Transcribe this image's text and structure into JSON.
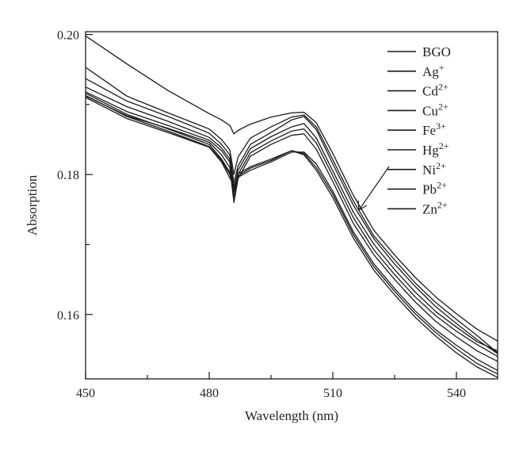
{
  "chart_data": {
    "type": "line",
    "title": "",
    "xlabel": "Wavelength (nm)",
    "ylabel": "Absorption",
    "xlim": [
      450,
      550
    ],
    "ylim": [
      0.1508,
      0.2004
    ],
    "x_ticks": [
      {
        "value": 450,
        "label": "450"
      },
      {
        "value": 480,
        "label": "480"
      },
      {
        "value": 510,
        "label": "510"
      },
      {
        "value": 540,
        "label": "540"
      }
    ],
    "y_ticks": [
      {
        "value": 0.16,
        "label": "0.16"
      },
      {
        "value": 0.18,
        "label": "0.18"
      },
      {
        "value": 0.2,
        "label": "0.20"
      }
    ],
    "grid": false,
    "legend_position": "top-right",
    "line_color": "#1a1a1a",
    "x": [
      450,
      460,
      470,
      480,
      483,
      485,
      486,
      487,
      490,
      495,
      500,
      503,
      506,
      510,
      515,
      520,
      525,
      530,
      535,
      540,
      545,
      550
    ],
    "series": [
      {
        "name": "BGO",
        "sup": "",
        "values": [
          0.1998,
          0.1958,
          0.192,
          0.1887,
          0.1878,
          0.187,
          0.1858,
          0.1863,
          0.1872,
          0.1882,
          0.1888,
          0.1889,
          0.1874,
          0.183,
          0.177,
          0.172,
          0.1685,
          0.1653,
          0.1625,
          0.1601,
          0.1579,
          0.1562
        ]
      },
      {
        "name": "Ag",
        "sup": "+",
        "values": [
          0.1953,
          0.1912,
          0.1888,
          0.1865,
          0.185,
          0.1835,
          0.18,
          0.1825,
          0.1852,
          0.1868,
          0.1882,
          0.1885,
          0.1868,
          0.1821,
          0.1762,
          0.1712,
          0.1678,
          0.1645,
          0.1617,
          0.1593,
          0.157,
          0.1545
        ]
      },
      {
        "name": "Cd",
        "sup": "2+",
        "values": [
          0.1937,
          0.1905,
          0.1883,
          0.1859,
          0.1843,
          0.1828,
          0.1788,
          0.1812,
          0.1843,
          0.186,
          0.1878,
          0.1883,
          0.1864,
          0.1815,
          0.1756,
          0.1708,
          0.1672,
          0.164,
          0.1611,
          0.1587,
          0.1564,
          0.1544
        ]
      },
      {
        "name": "Cu",
        "sup": "2+",
        "values": [
          0.1925,
          0.1897,
          0.1876,
          0.1853,
          0.1838,
          0.1822,
          0.1778,
          0.1806,
          0.1837,
          0.1854,
          0.1868,
          0.1873,
          0.1852,
          0.1805,
          0.1746,
          0.17,
          0.1664,
          0.1632,
          0.1604,
          0.1582,
          0.1561,
          0.1548
        ]
      },
      {
        "name": "Fe",
        "sup": "3+",
        "values": [
          0.1918,
          0.189,
          0.187,
          0.1849,
          0.1834,
          0.1818,
          0.1768,
          0.18,
          0.1831,
          0.1848,
          0.1862,
          0.1865,
          0.1845,
          0.1798,
          0.1738,
          0.1692,
          0.1657,
          0.1625,
          0.1598,
          0.1576,
          0.1557,
          0.154
        ]
      },
      {
        "name": "Hg",
        "sup": "2+",
        "values": [
          0.1912,
          0.1884,
          0.1866,
          0.1846,
          0.1828,
          0.181,
          0.176,
          0.1794,
          0.1826,
          0.1843,
          0.1856,
          0.1858,
          0.1836,
          0.179,
          0.173,
          0.1685,
          0.165,
          0.1618,
          0.159,
          0.1568,
          0.1548,
          0.1533
        ]
      },
      {
        "name": "Ni",
        "sup": "2+",
        "values": [
          0.191,
          0.188,
          0.186,
          0.1839,
          0.1818,
          0.1795,
          0.1785,
          0.1796,
          0.1806,
          0.1818,
          0.1832,
          0.1832,
          0.1815,
          0.1776,
          0.1718,
          0.1672,
          0.1637,
          0.1605,
          0.1578,
          0.1556,
          0.1536,
          0.152
        ]
      },
      {
        "name": "Pb",
        "sup": "2+",
        "values": [
          0.1913,
          0.1883,
          0.1862,
          0.184,
          0.182,
          0.18,
          0.178,
          0.1798,
          0.1809,
          0.182,
          0.1834,
          0.183,
          0.181,
          0.1772,
          0.1714,
          0.1668,
          0.1633,
          0.1601,
          0.1574,
          0.1551,
          0.153,
          0.1515
        ]
      },
      {
        "name": "Zn",
        "sup": "2+",
        "values": [
          0.1916,
          0.1886,
          0.1865,
          0.1843,
          0.1822,
          0.1803,
          0.1776,
          0.1801,
          0.1811,
          0.1822,
          0.1834,
          0.1828,
          0.1806,
          0.1767,
          0.1709,
          0.1663,
          0.1628,
          0.1596,
          0.1569,
          0.1545,
          0.1525,
          0.151
        ]
      }
    ]
  }
}
